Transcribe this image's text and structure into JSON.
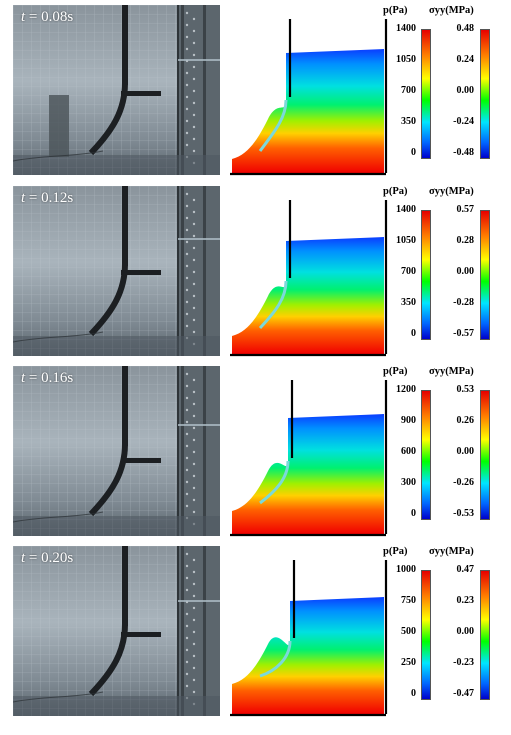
{
  "rows": [
    {
      "time_var": "t",
      "time_value": "= 0.08s",
      "p_title": "p(Pa)",
      "p_ticks": [
        "1400",
        "1050",
        "700",
        "350",
        "0"
      ],
      "s_title": "σyy(MPa)",
      "s_ticks": [
        "0.48",
        "0.24",
        "0.00",
        "-0.24",
        "-0.48"
      ]
    },
    {
      "time_var": "t",
      "time_value": "= 0.12s",
      "p_title": "p(Pa)",
      "p_ticks": [
        "1400",
        "1050",
        "700",
        "350",
        "0"
      ],
      "s_title": "σyy(MPa)",
      "s_ticks": [
        "0.57",
        "0.28",
        "0.00",
        "-0.28",
        "-0.57"
      ]
    },
    {
      "time_var": "t",
      "time_value": "= 0.16s",
      "p_title": "p(Pa)",
      "p_ticks": [
        "1200",
        "900",
        "600",
        "300",
        "0"
      ],
      "s_title": "σyy(MPa)",
      "s_ticks": [
        "0.53",
        "0.26",
        "0.00",
        "-0.26",
        "-0.53"
      ]
    },
    {
      "time_var": "t",
      "time_value": "= 0.20s",
      "p_title": "p(Pa)",
      "p_ticks": [
        "1000",
        "750",
        "500",
        "250",
        "0"
      ],
      "s_title": "σyy(MPa)",
      "s_ticks": [
        "0.47",
        "0.23",
        "0.00",
        "-0.23",
        "-0.47"
      ]
    }
  ]
}
